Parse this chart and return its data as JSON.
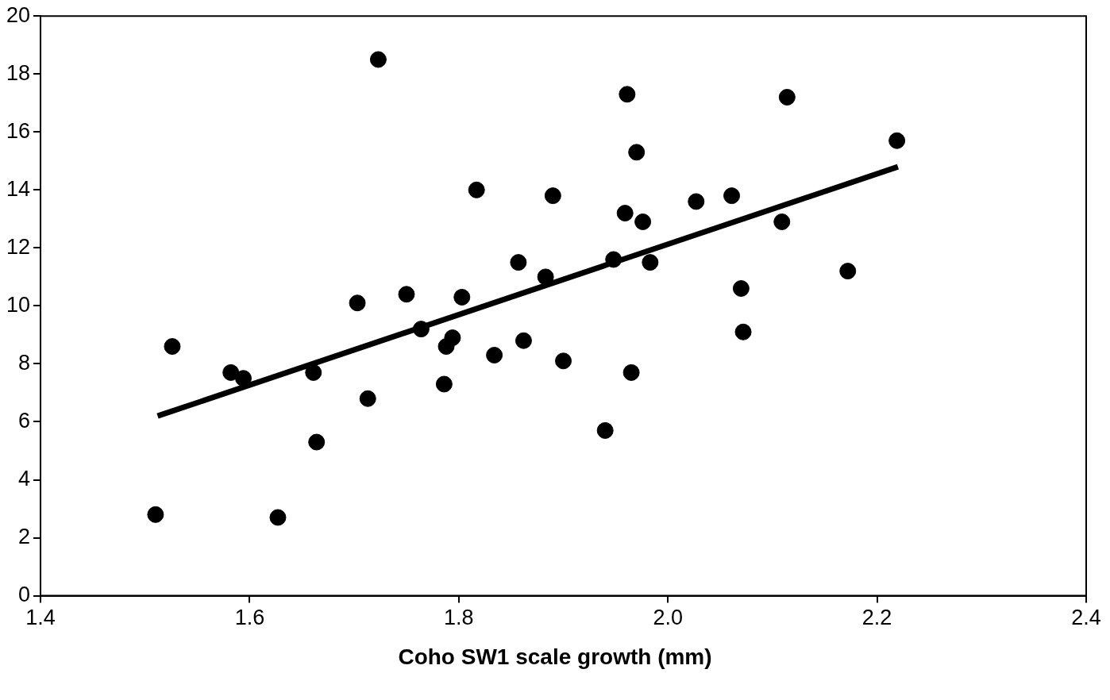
{
  "chart_data": {
    "type": "scatter",
    "xlabel": "Coho SW1 scale growth (mm)",
    "xlim": [
      1.4,
      2.4
    ],
    "xticks": [
      1.4,
      1.6,
      1.8,
      {
        "value": 2.0,
        "label": "2.0"
      },
      2.2,
      2.4
    ],
    "ylim": [
      0,
      20
    ],
    "yticks": [
      0,
      2,
      4,
      6,
      8,
      10,
      12,
      14,
      16,
      18,
      20
    ],
    "grid": false,
    "legend": false,
    "marker": "circle",
    "series": [
      {
        "type": "scatter",
        "color": "#000000",
        "x": [
          1.51,
          1.526,
          1.582,
          1.594,
          1.627,
          1.661,
          1.664,
          1.703,
          1.713,
          1.723,
          1.75,
          1.764,
          1.786,
          1.788,
          1.794,
          1.803,
          1.817,
          1.834,
          1.857,
          1.862,
          1.883,
          1.89,
          1.9,
          1.94,
          1.948,
          1.959,
          1.961,
          1.965,
          1.97,
          1.976,
          1.983,
          2.027,
          2.061,
          2.07,
          2.072,
          2.109,
          2.114,
          2.172,
          2.219
        ],
        "values": [
          2.8,
          8.6,
          7.7,
          7.5,
          2.7,
          7.7,
          5.3,
          10.1,
          6.8,
          18.5,
          10.4,
          9.2,
          7.3,
          8.6,
          8.9,
          10.3,
          14.0,
          8.3,
          11.5,
          8.8,
          11.0,
          13.8,
          8.1,
          5.7,
          11.6,
          13.2,
          17.3,
          7.7,
          15.3,
          12.9,
          11.5,
          13.6,
          13.8,
          10.6,
          9.1,
          12.9,
          17.2,
          11.2,
          15.7
        ]
      },
      {
        "type": "line",
        "marker": "none",
        "color": "#000000",
        "x": [
          1.512,
          2.22
        ],
        "values": [
          6.2,
          14.8
        ]
      }
    ]
  }
}
